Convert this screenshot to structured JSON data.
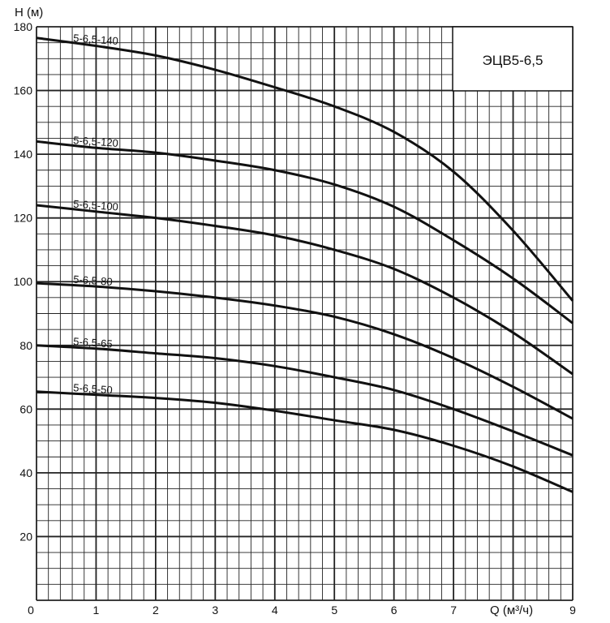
{
  "chart_data": {
    "type": "line",
    "title": "ЭЦВ5-6,5",
    "xlabel": "Q (м³/ч)",
    "ylabel": "H (м)",
    "xlim": [
      0,
      9
    ],
    "ylim": [
      0,
      180
    ],
    "x_ticks": [
      "0",
      "1",
      "2",
      "3",
      "4",
      "5",
      "6",
      "7",
      "",
      "9"
    ],
    "y_ticks": [
      "",
      "20",
      "40",
      "60",
      "80",
      "100",
      "120",
      "140",
      "160",
      "180"
    ],
    "grid": true,
    "x": [
      0,
      1,
      2,
      3,
      4,
      5,
      6,
      7,
      8,
      9
    ],
    "series": [
      {
        "name": "5-6,5-140",
        "values": [
          176.5,
          174,
          171,
          166.5,
          161,
          155,
          147,
          134.5,
          116,
          94
        ]
      },
      {
        "name": "5-6,5-120",
        "values": [
          144,
          142,
          140.5,
          138,
          135,
          130.5,
          123.5,
          113,
          101,
          87
        ]
      },
      {
        "name": "5-6,5-100",
        "values": [
          124,
          122,
          120,
          117.5,
          114.5,
          110,
          104,
          95,
          84,
          71
        ]
      },
      {
        "name": "5-6,5-80",
        "values": [
          99.5,
          98.5,
          97,
          95,
          92.5,
          89,
          83.5,
          76,
          67,
          57
        ]
      },
      {
        "name": "5-6,5-65",
        "values": [
          80,
          79,
          77.5,
          76,
          73.5,
          70,
          66,
          60,
          53,
          45.5
        ]
      },
      {
        "name": "5-6,5-50",
        "values": [
          65.5,
          64.5,
          63.5,
          62,
          59.5,
          56.5,
          53.5,
          48.5,
          42,
          34
        ]
      }
    ],
    "line_color": "#111111"
  }
}
